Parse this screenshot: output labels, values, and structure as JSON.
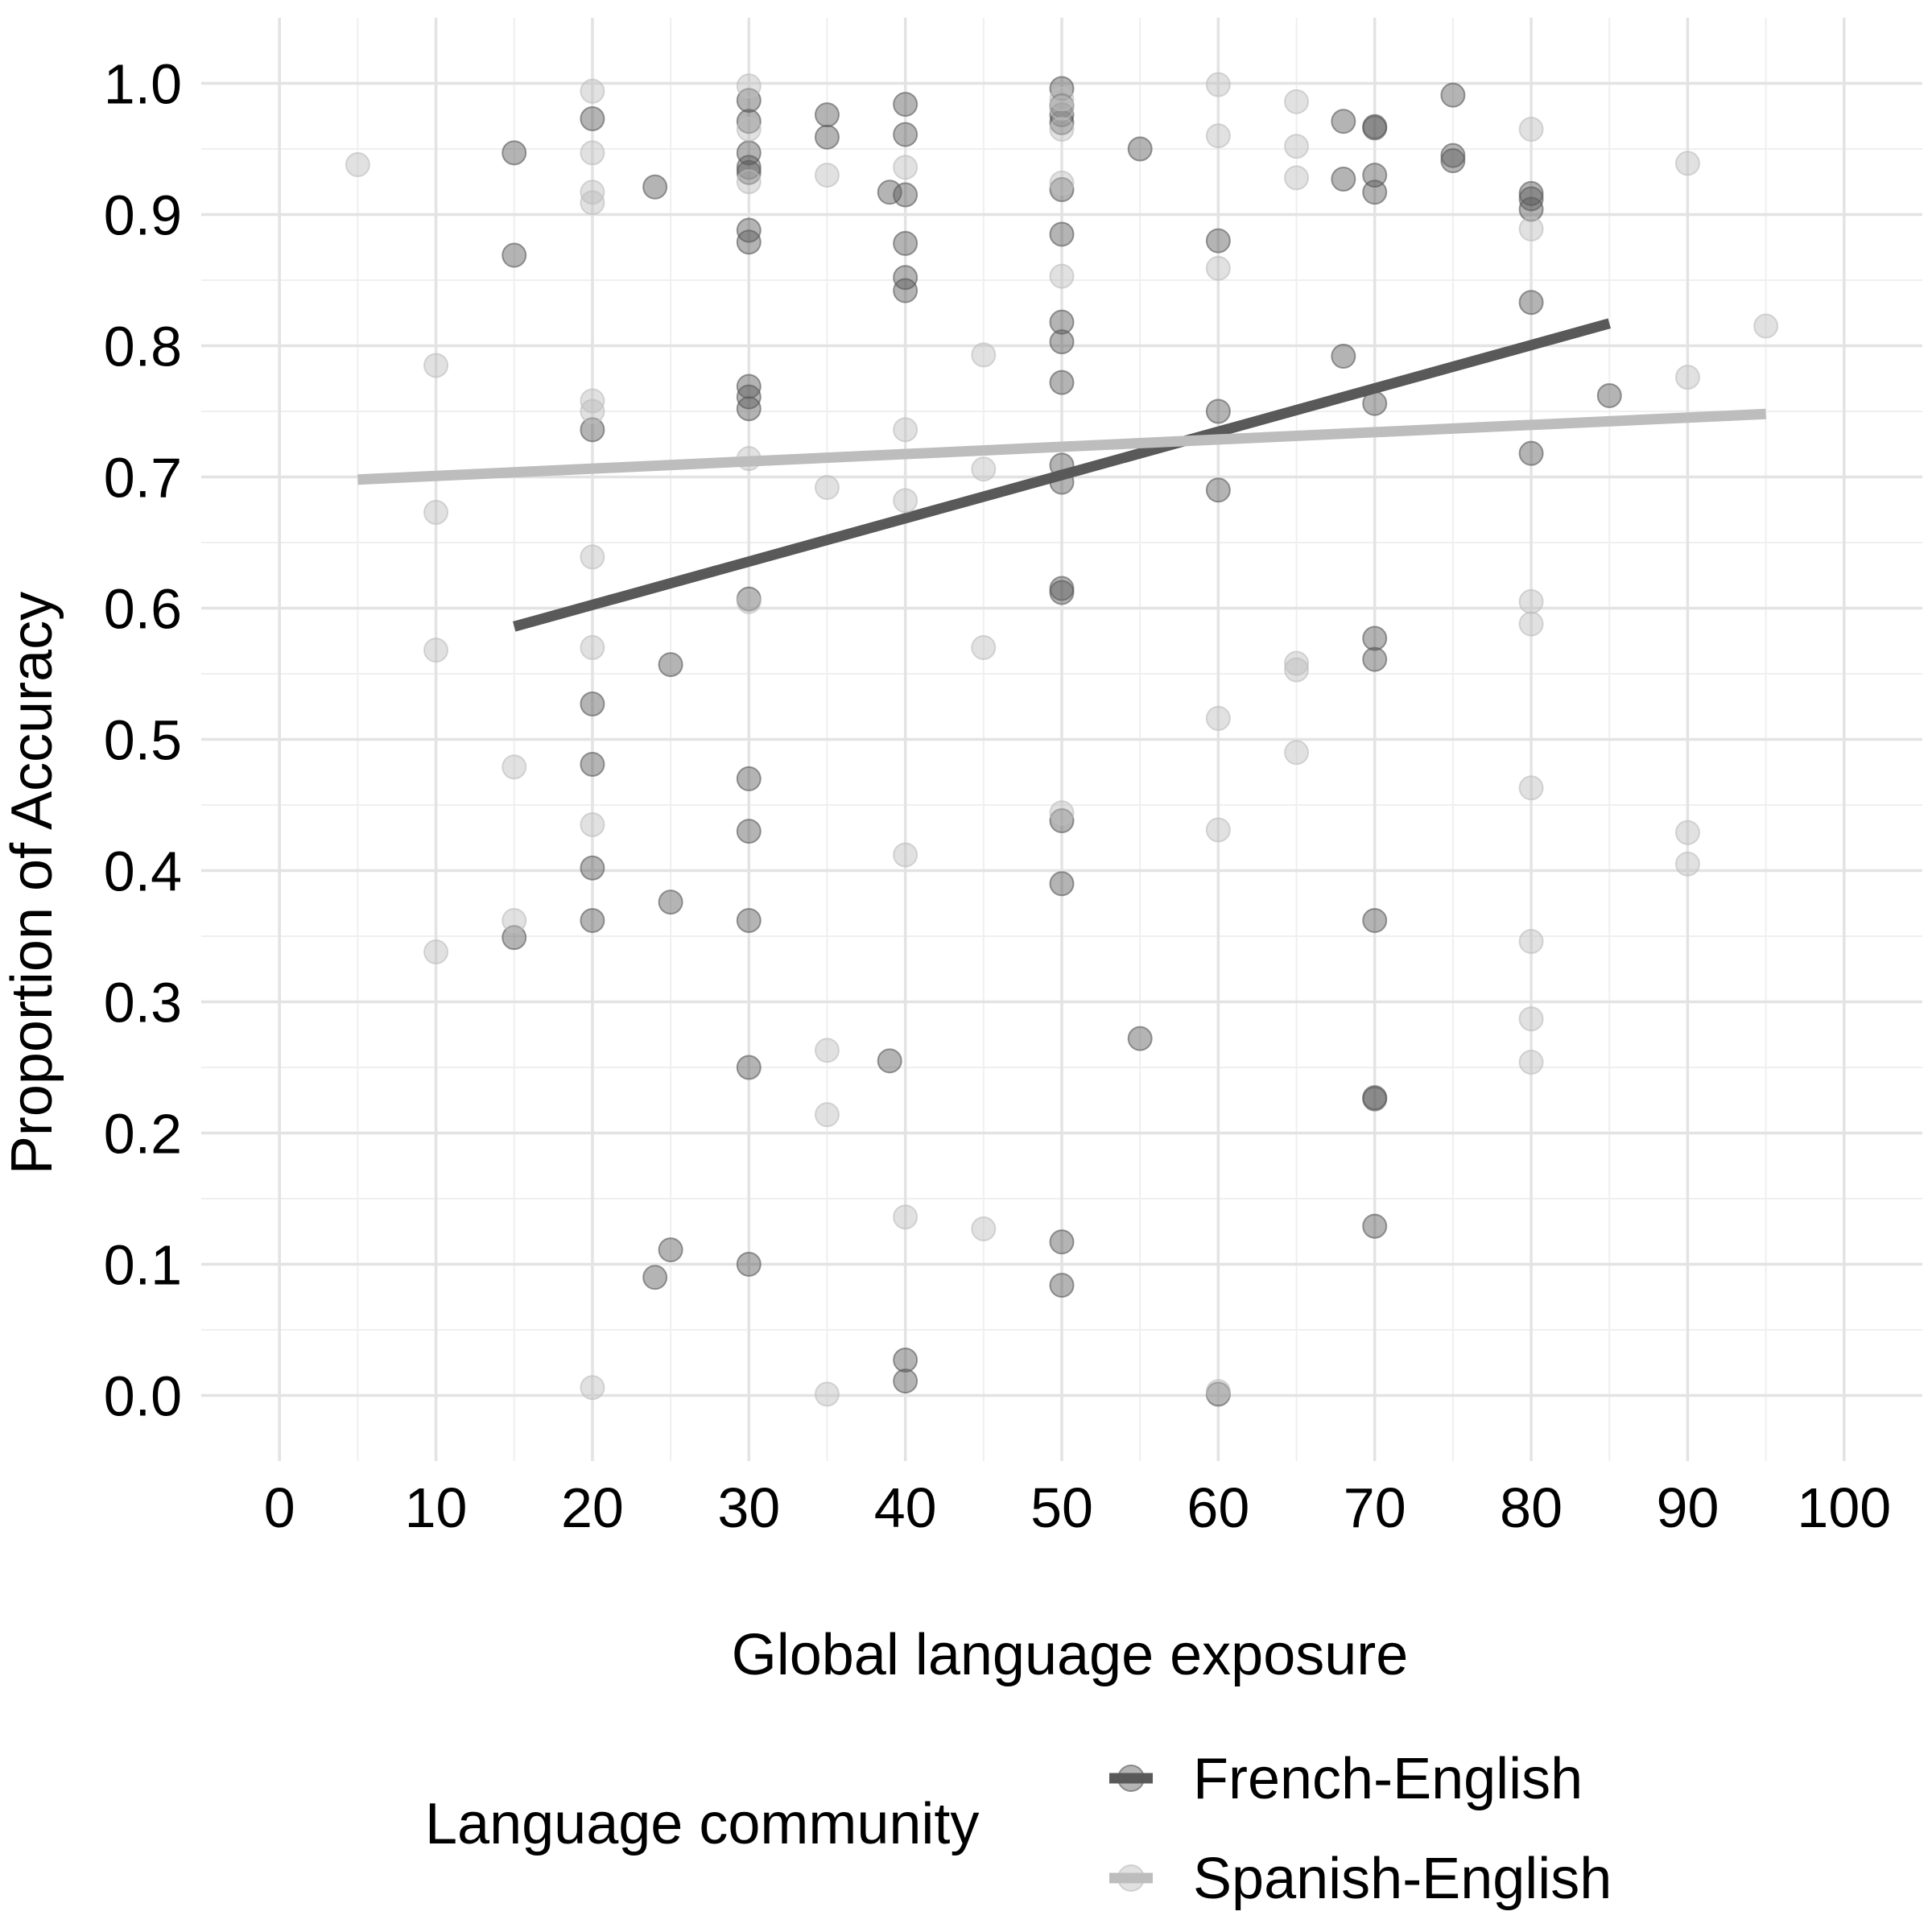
{
  "chart_data": {
    "type": "scatter",
    "title": "",
    "xlabel": "Global language exposure",
    "ylabel": "Proportion of Accuracy",
    "xlim": [
      -5,
      105
    ],
    "ylim": [
      -0.05,
      1.05
    ],
    "x_ticks": [
      "0",
      "10",
      "20",
      "30",
      "40",
      "50",
      "60",
      "70",
      "80",
      "90",
      "100"
    ],
    "y_ticks": [
      "0.0",
      "0.1",
      "0.2",
      "0.3",
      "0.4",
      "0.5",
      "0.6",
      "0.7",
      "0.8",
      "0.9",
      "1.0"
    ],
    "grid": true,
    "legend": {
      "title": "Language community",
      "position": "bottom"
    },
    "series": [
      {
        "name": "French-English",
        "color": "#595959",
        "point_opacity": 0.45,
        "trend": {
          "x": [
            15,
            85
          ],
          "y": [
            0.586,
            0.817
          ]
        },
        "points": [
          [
            15,
            0.947
          ],
          [
            15,
            0.869
          ],
          [
            15,
            0.349
          ],
          [
            20,
            0.973
          ],
          [
            20,
            0.736
          ],
          [
            20,
            0.527
          ],
          [
            20,
            0.481
          ],
          [
            20,
            0.402
          ],
          [
            20,
            0.362
          ],
          [
            24,
            0.921
          ],
          [
            24,
            0.09
          ],
          [
            25,
            0.557
          ],
          [
            25,
            0.376
          ],
          [
            25,
            0.111
          ],
          [
            30,
            0.987
          ],
          [
            30,
            0.971
          ],
          [
            30,
            0.947
          ],
          [
            30,
            0.936
          ],
          [
            30,
            0.932
          ],
          [
            30,
            0.888
          ],
          [
            30,
            0.879
          ],
          [
            30,
            0.769
          ],
          [
            30,
            0.761
          ],
          [
            30,
            0.752
          ],
          [
            30,
            0.607
          ],
          [
            30,
            0.47
          ],
          [
            30,
            0.43
          ],
          [
            30,
            0.362
          ],
          [
            30,
            0.25
          ],
          [
            30,
            0.1
          ],
          [
            35,
            0.976
          ],
          [
            35,
            0.959
          ],
          [
            39,
            0.917
          ],
          [
            39,
            0.255
          ],
          [
            40,
            0.984
          ],
          [
            40,
            0.961
          ],
          [
            40,
            0.915
          ],
          [
            40,
            0.878
          ],
          [
            40,
            0.852
          ],
          [
            40,
            0.842
          ],
          [
            40,
            0.027
          ],
          [
            40,
            0.011
          ],
          [
            50,
            0.996
          ],
          [
            50,
            0.983
          ],
          [
            50,
            0.976
          ],
          [
            50,
            0.97
          ],
          [
            50,
            0.919
          ],
          [
            50,
            0.885
          ],
          [
            50,
            0.818
          ],
          [
            50,
            0.803
          ],
          [
            50,
            0.772
          ],
          [
            50,
            0.709
          ],
          [
            50,
            0.696
          ],
          [
            50,
            0.615
          ],
          [
            50,
            0.612
          ],
          [
            50,
            0.438
          ],
          [
            50,
            0.39
          ],
          [
            50,
            0.117
          ],
          [
            50,
            0.084
          ],
          [
            55,
            0.95
          ],
          [
            55,
            0.272
          ],
          [
            60,
            0.88
          ],
          [
            60,
            0.75
          ],
          [
            60,
            0.69
          ],
          [
            60,
            0.001
          ],
          [
            68,
            0.971
          ],
          [
            68,
            0.927
          ],
          [
            68,
            0.792
          ],
          [
            70,
            0.967
          ],
          [
            70,
            0.966
          ],
          [
            70,
            0.93
          ],
          [
            70,
            0.917
          ],
          [
            70,
            0.756
          ],
          [
            70,
            0.577
          ],
          [
            70,
            0.561
          ],
          [
            70,
            0.362
          ],
          [
            70,
            0.227
          ],
          [
            70,
            0.226
          ],
          [
            70,
            0.129
          ],
          [
            75,
            0.991
          ],
          [
            75,
            0.945
          ],
          [
            75,
            0.941
          ],
          [
            80,
            0.916
          ],
          [
            80,
            0.912
          ],
          [
            80,
            0.904
          ],
          [
            80,
            0.833
          ],
          [
            80,
            0.718
          ],
          [
            85,
            0.762
          ]
        ]
      },
      {
        "name": "Spanish-English",
        "color": "#bdbdbd",
        "point_opacity": 0.45,
        "trend": {
          "x": [
            5,
            95
          ],
          "y": [
            0.698,
            0.748
          ]
        },
        "points": [
          [
            5,
            0.938
          ],
          [
            10,
            0.785
          ],
          [
            10,
            0.673
          ],
          [
            10,
            0.568
          ],
          [
            10,
            0.338
          ],
          [
            15,
            0.479
          ],
          [
            15,
            0.362
          ],
          [
            20,
            0.994
          ],
          [
            20,
            0.947
          ],
          [
            20,
            0.917
          ],
          [
            20,
            0.909
          ],
          [
            20,
            0.758
          ],
          [
            20,
            0.75
          ],
          [
            20,
            0.639
          ],
          [
            20,
            0.57
          ],
          [
            20,
            0.435
          ],
          [
            20,
            0.006
          ],
          [
            30,
            0.998
          ],
          [
            30,
            0.965
          ],
          [
            30,
            0.925
          ],
          [
            30,
            0.714
          ],
          [
            30,
            0.605
          ],
          [
            35,
            0.93
          ],
          [
            35,
            0.692
          ],
          [
            35,
            0.263
          ],
          [
            35,
            0.214
          ],
          [
            35,
            0.001
          ],
          [
            40,
            0.936
          ],
          [
            40,
            0.736
          ],
          [
            40,
            0.682
          ],
          [
            40,
            0.412
          ],
          [
            40,
            0.136
          ],
          [
            45,
            0.793
          ],
          [
            45,
            0.706
          ],
          [
            45,
            0.57
          ],
          [
            45,
            0.127
          ],
          [
            50,
            0.988
          ],
          [
            50,
            0.981
          ],
          [
            50,
            0.965
          ],
          [
            50,
            0.924
          ],
          [
            50,
            0.853
          ],
          [
            50,
            0.444
          ],
          [
            60,
            0.999
          ],
          [
            60,
            0.96
          ],
          [
            60,
            0.859
          ],
          [
            60,
            0.516
          ],
          [
            60,
            0.431
          ],
          [
            60,
            0.003
          ],
          [
            65,
            0.986
          ],
          [
            65,
            0.952
          ],
          [
            65,
            0.928
          ],
          [
            65,
            0.558
          ],
          [
            65,
            0.553
          ],
          [
            65,
            0.49
          ],
          [
            80,
            0.965
          ],
          [
            80,
            0.889
          ],
          [
            80,
            0.605
          ],
          [
            80,
            0.588
          ],
          [
            80,
            0.463
          ],
          [
            80,
            0.346
          ],
          [
            80,
            0.287
          ],
          [
            80,
            0.254
          ],
          [
            90,
            0.939
          ],
          [
            90,
            0.776
          ],
          [
            90,
            0.429
          ],
          [
            90,
            0.405
          ],
          [
            95,
            0.815
          ]
        ]
      }
    ]
  }
}
